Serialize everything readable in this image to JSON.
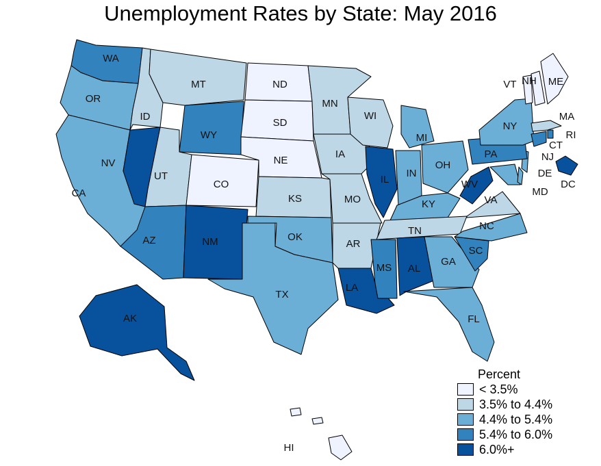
{
  "title": "Unemployment Rates by State: May 2016",
  "legend": {
    "title": "Percent",
    "bins": [
      {
        "label": "< 3.5%",
        "color": "#eff3ff"
      },
      {
        "label": "3.5% to 4.4%",
        "color": "#bdd7e7"
      },
      {
        "label": "4.4% to 5.4%",
        "color": "#6baed6"
      },
      {
        "label": "5.4% to 6.0%",
        "color": "#3182bd"
      },
      {
        "label": "6.0%+",
        "color": "#08519c"
      }
    ]
  },
  "states": [
    {
      "abbr": "WA",
      "bin": 3
    },
    {
      "abbr": "OR",
      "bin": 2
    },
    {
      "abbr": "CA",
      "bin": 2
    },
    {
      "abbr": "ID",
      "bin": 1
    },
    {
      "abbr": "NV",
      "bin": 4
    },
    {
      "abbr": "MT",
      "bin": 1
    },
    {
      "abbr": "WY",
      "bin": 3
    },
    {
      "abbr": "UT",
      "bin": 1
    },
    {
      "abbr": "AZ",
      "bin": 3
    },
    {
      "abbr": "CO",
      "bin": 0
    },
    {
      "abbr": "NM",
      "bin": 4
    },
    {
      "abbr": "ND",
      "bin": 0
    },
    {
      "abbr": "SD",
      "bin": 0
    },
    {
      "abbr": "NE",
      "bin": 0
    },
    {
      "abbr": "KS",
      "bin": 1
    },
    {
      "abbr": "OK",
      "bin": 2
    },
    {
      "abbr": "TX",
      "bin": 2
    },
    {
      "abbr": "MN",
      "bin": 1
    },
    {
      "abbr": "IA",
      "bin": 1
    },
    {
      "abbr": "MO",
      "bin": 1
    },
    {
      "abbr": "AR",
      "bin": 1
    },
    {
      "abbr": "LA",
      "bin": 4
    },
    {
      "abbr": "WI",
      "bin": 1
    },
    {
      "abbr": "IL",
      "bin": 4
    },
    {
      "abbr": "MI",
      "bin": 2
    },
    {
      "abbr": "IN",
      "bin": 2
    },
    {
      "abbr": "OH",
      "bin": 2
    },
    {
      "abbr": "KY",
      "bin": 2
    },
    {
      "abbr": "TN",
      "bin": 1
    },
    {
      "abbr": "MS",
      "bin": 3
    },
    {
      "abbr": "AL",
      "bin": 4
    },
    {
      "abbr": "GA",
      "bin": 2
    },
    {
      "abbr": "FL",
      "bin": 2
    },
    {
      "abbr": "SC",
      "bin": 3
    },
    {
      "abbr": "NC",
      "bin": 2
    },
    {
      "abbr": "VA",
      "bin": 1
    },
    {
      "abbr": "WV",
      "bin": 4
    },
    {
      "abbr": "MD",
      "bin": 2
    },
    {
      "abbr": "DE",
      "bin": 2
    },
    {
      "abbr": "NJ",
      "bin": 2
    },
    {
      "abbr": "PA",
      "bin": 3
    },
    {
      "abbr": "NY",
      "bin": 2
    },
    {
      "abbr": "CT",
      "bin": 3
    },
    {
      "abbr": "RI",
      "bin": 3
    },
    {
      "abbr": "MA",
      "bin": 1
    },
    {
      "abbr": "VT",
      "bin": 0
    },
    {
      "abbr": "NH",
      "bin": 0
    },
    {
      "abbr": "ME",
      "bin": 0
    },
    {
      "abbr": "DC",
      "bin": 4
    },
    {
      "abbr": "AK",
      "bin": 4
    },
    {
      "abbr": "HI",
      "bin": 0
    }
  ]
}
